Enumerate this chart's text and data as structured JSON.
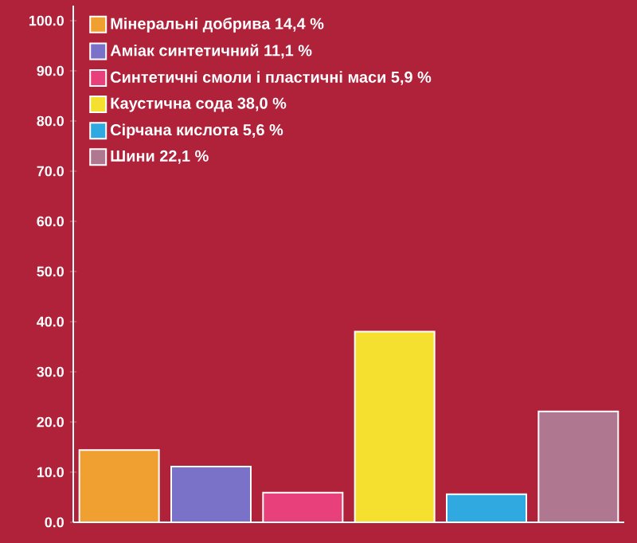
{
  "chart_data": {
    "type": "bar",
    "categories": [
      null,
      null,
      null,
      null,
      null,
      null
    ],
    "series": [
      {
        "name": "Мінеральні добрива 14,4 %",
        "color": "#f0a030",
        "values": [
          14.4,
          null,
          null,
          null,
          null,
          null
        ]
      },
      {
        "name": "Аміак синтетичний 11,1 %",
        "color": "#7a72c8",
        "values": [
          null,
          11.1,
          null,
          null,
          null,
          null
        ]
      },
      {
        "name": "Синтетичні смоли і пластичні маси 5,9 %",
        "color": "#e8407a",
        "values": [
          null,
          null,
          5.9,
          null,
          null,
          null
        ]
      },
      {
        "name": "Каустична сода 38,0 %",
        "color": "#f5e030",
        "values": [
          null,
          null,
          null,
          38.0,
          null,
          null
        ]
      },
      {
        "name": "Сірчана кислота 5,6 %",
        "color": "#30a8e0",
        "values": [
          null,
          null,
          null,
          null,
          5.6,
          null
        ]
      },
      {
        "name": "Шини 22,1 %",
        "color": "#b07890",
        "values": [
          null,
          null,
          null,
          null,
          null,
          22.1
        ]
      }
    ],
    "ylim": [
      0,
      103
    ],
    "yticks": [
      {
        "value": 0,
        "label": "0.0"
      },
      {
        "value": 10,
        "label": "10.0"
      },
      {
        "value": 20,
        "label": "20.0"
      },
      {
        "value": 30,
        "label": "30.0"
      },
      {
        "value": 40,
        "label": "40.0"
      },
      {
        "value": 50,
        "label": "50.0"
      },
      {
        "value": 60,
        "label": "60.0"
      },
      {
        "value": 70,
        "label": "70.0"
      },
      {
        "value": 80,
        "label": "80.0"
      },
      {
        "value": 90,
        "label": "90.0"
      },
      {
        "value": 100,
        "label": "100.0"
      }
    ],
    "grid": false,
    "legend": "top left"
  }
}
